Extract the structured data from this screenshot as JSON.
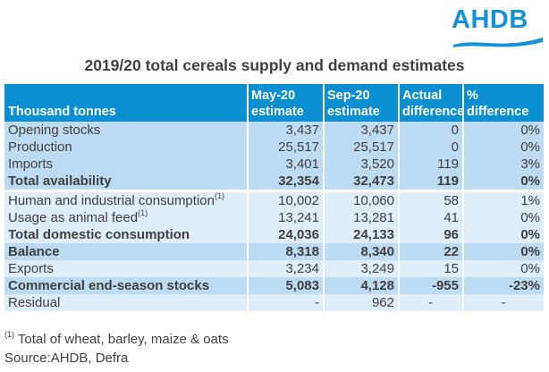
{
  "logo": {
    "text": "AHDB",
    "color": "#1591d6"
  },
  "title": "2019/20 total cereals supply and demand estimates",
  "table": {
    "header_color": "#0b8fd3",
    "row_dark_color": "#bddcf3",
    "row_light_color": "#deeefb",
    "headers": [
      {
        "line1": "",
        "line2": "Thousand tonnes"
      },
      {
        "line1": "May-20",
        "line2": "estimate"
      },
      {
        "line1": "Sep-20",
        "line2": "estimate"
      },
      {
        "line1": "Actual",
        "line2": "difference"
      },
      {
        "line1": "%",
        "line2": "difference"
      }
    ],
    "rows": [
      {
        "label": "Opening stocks",
        "note": "",
        "may": "3,437",
        "sep": "3,437",
        "diff": "0",
        "pct": "0%"
      },
      {
        "label": "Production",
        "note": "",
        "may": "25,517",
        "sep": "25,517",
        "diff": "0",
        "pct": "0%"
      },
      {
        "label": "Imports",
        "note": "",
        "may": "3,401",
        "sep": "3,520",
        "diff": "119",
        "pct": "3%"
      },
      {
        "label": "Total availability",
        "note": "",
        "may": "32,354",
        "sep": "32,473",
        "diff": "119",
        "pct": "0%"
      },
      {
        "label": "Human and industrial consumption",
        "note": "(1)",
        "may": "10,002",
        "sep": "10,060",
        "diff": "58",
        "pct": "1%"
      },
      {
        "label": "Usage as animal feed",
        "note": "(1)",
        "may": "13,241",
        "sep": "13,281",
        "diff": "41",
        "pct": "0%"
      },
      {
        "label": "Total domestic consumption",
        "note": "",
        "may": "24,036",
        "sep": "24,133",
        "diff": "96",
        "pct": "0%"
      },
      {
        "label": "Balance",
        "note": "",
        "may": "8,318",
        "sep": "8,340",
        "diff": "22",
        "pct": "0%"
      },
      {
        "label": "Exports",
        "note": "",
        "may": "3,234",
        "sep": "3,249",
        "diff": "15",
        "pct": "0%"
      },
      {
        "label": "Commercial end-season stocks",
        "note": "",
        "may": "5,083",
        "sep": "4,128",
        "diff": "-955",
        "pct": "-23%"
      },
      {
        "label": "Residual",
        "note": "",
        "may": "-",
        "sep": "962",
        "diff": "-",
        "pct": "-"
      }
    ]
  },
  "footnote": {
    "marker": "(1)",
    "text": " Total of wheat, barley, maize & oats"
  },
  "source": "Source:AHDB, Defra"
}
